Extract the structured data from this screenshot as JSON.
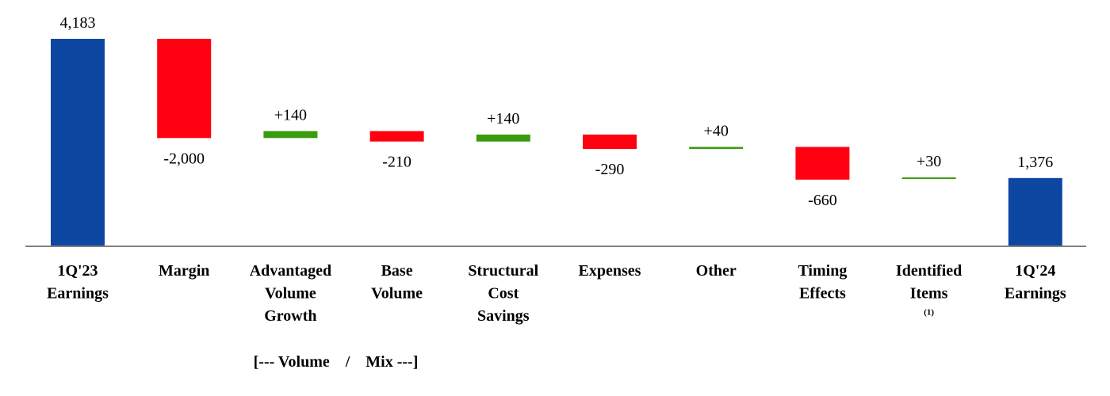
{
  "chart_data": {
    "type": "bar",
    "subtype": "waterfall",
    "categories": [
      {
        "lines": [
          "1Q'23",
          "Earnings"
        ]
      },
      {
        "lines": [
          "Margin"
        ]
      },
      {
        "lines": [
          "Advantaged",
          "Volume",
          "Growth"
        ]
      },
      {
        "lines": [
          "Base",
          "Volume"
        ]
      },
      {
        "lines": [
          "Structural",
          "Cost",
          "Savings"
        ]
      },
      {
        "lines": [
          "Expenses"
        ]
      },
      {
        "lines": [
          "Other"
        ]
      },
      {
        "lines": [
          "Timing",
          "Effects"
        ]
      },
      {
        "lines": [
          "Identified",
          "Items"
        ],
        "footnote": "(1)"
      },
      {
        "lines": [
          "1Q'24",
          "Earnings"
        ]
      }
    ],
    "steps": [
      {
        "kind": "total",
        "value": 4183,
        "label": "4,183"
      },
      {
        "kind": "delta",
        "value": -2000,
        "label": "-2,000"
      },
      {
        "kind": "delta",
        "value": 140,
        "label": "+140"
      },
      {
        "kind": "delta",
        "value": -210,
        "label": "-210"
      },
      {
        "kind": "delta",
        "value": 140,
        "label": "+140"
      },
      {
        "kind": "delta",
        "value": -290,
        "label": "-290"
      },
      {
        "kind": "delta",
        "value": 40,
        "label": "+40"
      },
      {
        "kind": "delta",
        "value": -660,
        "label": "-660"
      },
      {
        "kind": "delta",
        "value": 30,
        "label": "+30"
      },
      {
        "kind": "total",
        "value": 1376,
        "label": "1,376"
      }
    ],
    "group_annotation": {
      "text": "[--- Volume    /    Mix ---]",
      "spans": [
        2,
        3
      ]
    },
    "colors": {
      "total": "#0d47a1",
      "increase": "#3a9b0c",
      "decrease": "#ff0010",
      "axis": "#808080"
    },
    "ylim": [
      0,
      4183
    ],
    "grid": false,
    "legend": "none"
  }
}
